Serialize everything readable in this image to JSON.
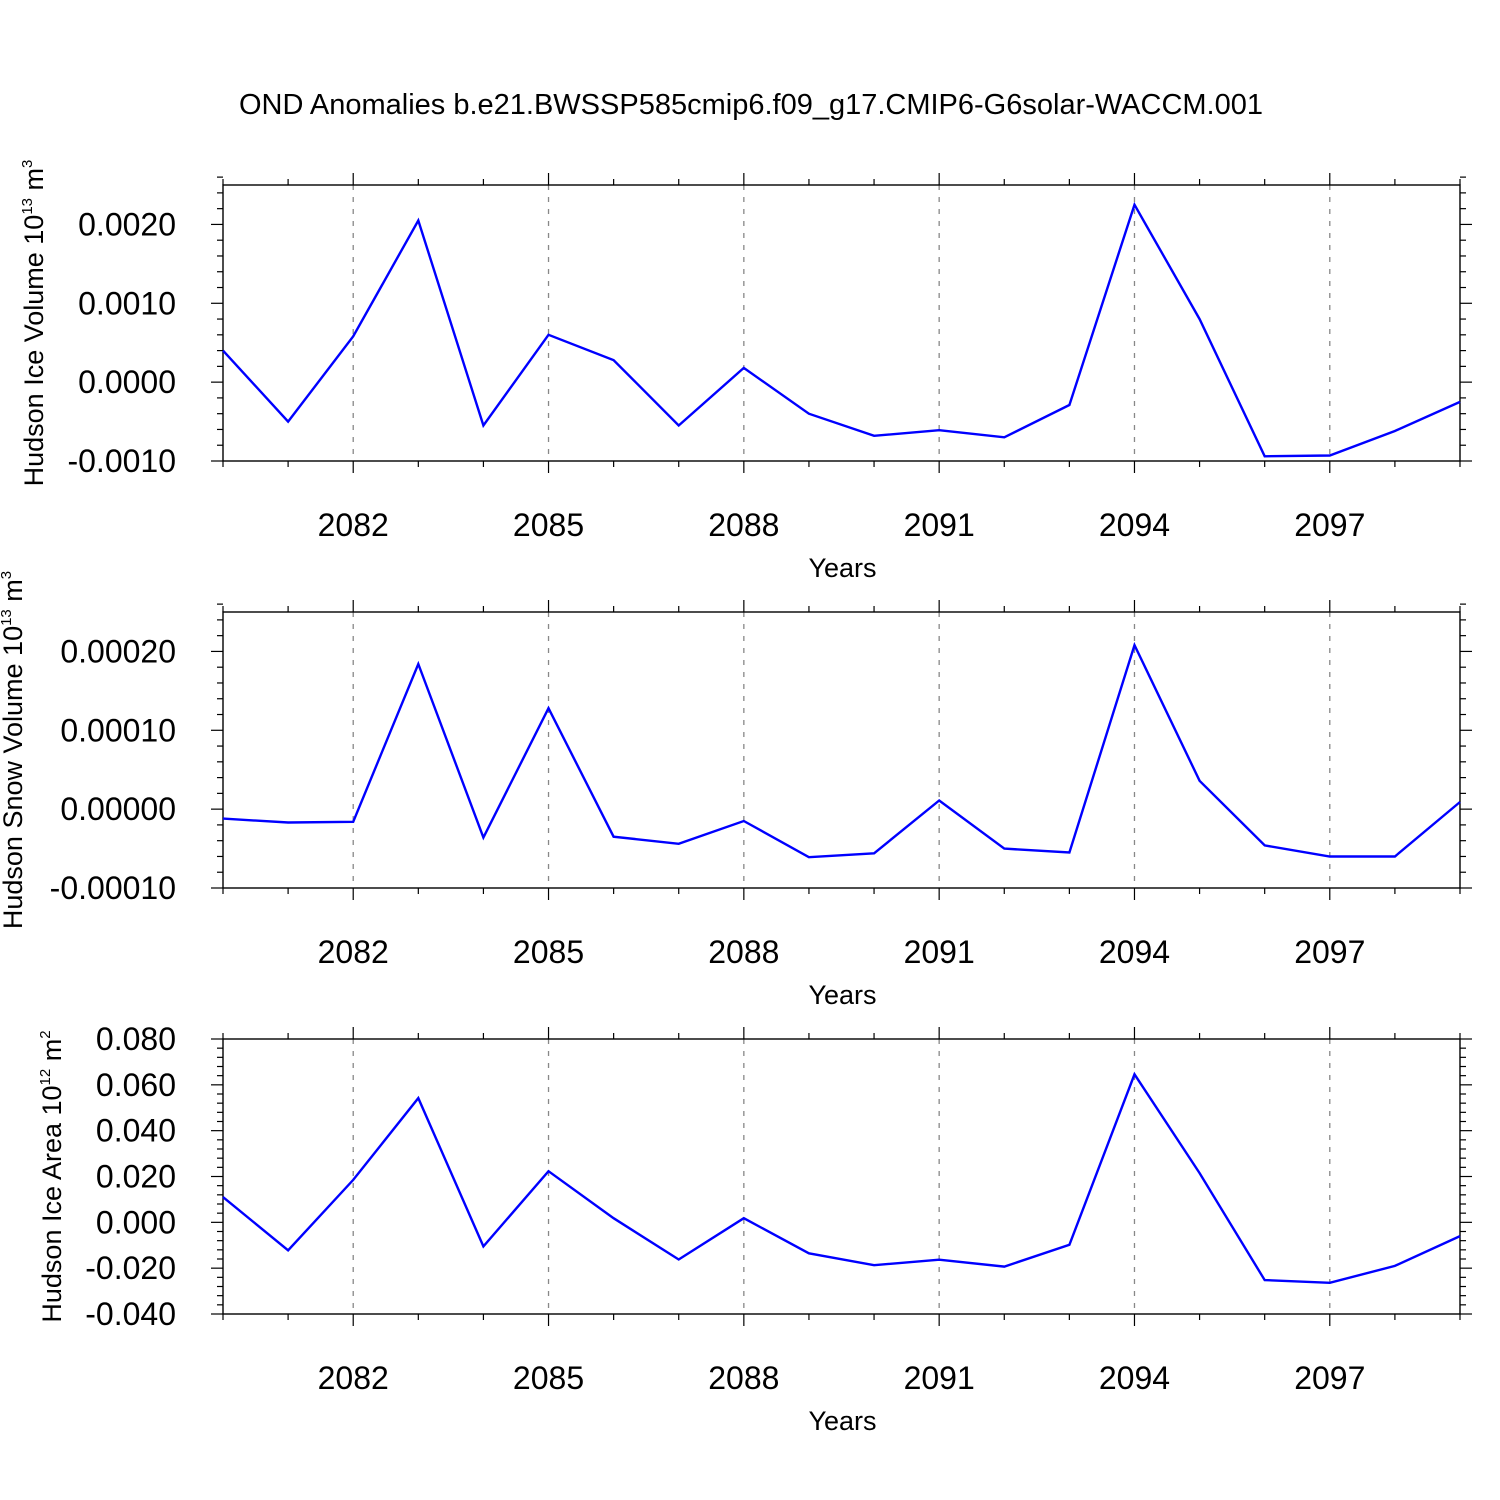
{
  "title": "OND Anomalies b.e21.BWSSP585cmip6.f09_g17.CMIP6-G6solar-WACCM.001",
  "colors": {
    "line": "#0000ff",
    "grid": "#888888",
    "axis": "#000000"
  },
  "chart_data": [
    {
      "type": "line",
      "xlabel": "Years",
      "ylabel": {
        "text": "Hudson Ice Volume 10",
        "sup": "13",
        "unit": " m",
        "unit_sup": "3"
      },
      "xlim": [
        2080,
        2099
      ],
      "ylim": [
        -0.001,
        0.0025
      ],
      "y_major_ticks": [
        -0.001,
        0.0,
        0.001,
        0.002
      ],
      "y_tick_labels": [
        "-0.0010",
        "0.0000",
        "0.0010",
        "0.0020"
      ],
      "y_minor_step": 0.0002,
      "x_major_ticks": [
        2082,
        2085,
        2088,
        2091,
        2094,
        2097
      ],
      "x_tick_labels": [
        "2082",
        "2085",
        "2088",
        "2091",
        "2094",
        "2097"
      ],
      "x_minor_step": 1,
      "grid": "vertical dashed at major x ticks",
      "x": [
        2080,
        2081,
        2082,
        2083,
        2084,
        2085,
        2086,
        2087,
        2088,
        2089,
        2090,
        2091,
        2092,
        2093,
        2094,
        2095,
        2096,
        2097,
        2098,
        2099
      ],
      "values": [
        0.0004,
        -0.0005,
        0.00058,
        0.00205,
        -0.00055,
        0.0006,
        0.00028,
        -0.00055,
        0.00018,
        -0.0004,
        -0.00068,
        -0.00061,
        -0.0007,
        -0.00029,
        0.00225,
        0.0008,
        -0.00094,
        -0.00093,
        -0.00062,
        -0.00025
      ]
    },
    {
      "type": "line",
      "xlabel": "Years",
      "ylabel": {
        "text": "Hudson Snow Volume 10",
        "sup": "13",
        "unit": " m",
        "unit_sup": "3"
      },
      "xlim": [
        2080,
        2099
      ],
      "ylim": [
        -0.0001,
        0.00025
      ],
      "y_major_ticks": [
        -0.0001,
        0.0,
        0.0001,
        0.0002
      ],
      "y_tick_labels": [
        "-0.00010",
        "0.00000",
        "0.00010",
        "0.00020"
      ],
      "y_minor_step": 2e-05,
      "x_major_ticks": [
        2082,
        2085,
        2088,
        2091,
        2094,
        2097
      ],
      "x_tick_labels": [
        "2082",
        "2085",
        "2088",
        "2091",
        "2094",
        "2097"
      ],
      "x_minor_step": 1,
      "grid": "vertical dashed at major x ticks",
      "x": [
        2080,
        2081,
        2082,
        2083,
        2084,
        2085,
        2086,
        2087,
        2088,
        2089,
        2090,
        2091,
        2092,
        2093,
        2094,
        2095,
        2096,
        2097,
        2098,
        2099
      ],
      "values": [
        -1.2e-05,
        -1.7e-05,
        -1.6e-05,
        0.000184,
        -3.6e-05,
        0.000128,
        -3.5e-05,
        -4.4e-05,
        -1.5e-05,
        -6.1e-05,
        -5.6e-05,
        1.1e-05,
        -5e-05,
        -5.5e-05,
        0.000208,
        3.6e-05,
        -4.6e-05,
        -6e-05,
        -6e-05,
        9e-06
      ]
    },
    {
      "type": "line",
      "xlabel": "Years",
      "ylabel": {
        "text": "Hudson Ice Area 10",
        "sup": "12",
        "unit": " m",
        "unit_sup": "2"
      },
      "xlim": [
        2080,
        2099
      ],
      "ylim": [
        -0.04,
        0.08
      ],
      "y_major_ticks": [
        -0.04,
        -0.02,
        0.0,
        0.02,
        0.04,
        0.06,
        0.08
      ],
      "y_tick_labels": [
        "-0.040",
        "-0.020",
        "0.000",
        "0.020",
        "0.040",
        "0.060",
        "0.080"
      ],
      "y_minor_step": 0.004,
      "x_major_ticks": [
        2082,
        2085,
        2088,
        2091,
        2094,
        2097
      ],
      "x_tick_labels": [
        "2082",
        "2085",
        "2088",
        "2091",
        "2094",
        "2097"
      ],
      "x_minor_step": 1,
      "grid": "vertical dashed at major x ticks",
      "x": [
        2080,
        2081,
        2082,
        2083,
        2084,
        2085,
        2086,
        2087,
        2088,
        2089,
        2090,
        2091,
        2092,
        2093,
        2094,
        2095,
        2096,
        2097,
        2098,
        2099
      ],
      "values": [
        0.011,
        -0.0122,
        0.0185,
        0.0542,
        -0.0105,
        0.0223,
        0.0018,
        -0.0162,
        0.0018,
        -0.0135,
        -0.0187,
        -0.0163,
        -0.0193,
        -0.0098,
        0.0646,
        0.0215,
        -0.0252,
        -0.0264,
        -0.019,
        -0.006
      ]
    }
  ]
}
